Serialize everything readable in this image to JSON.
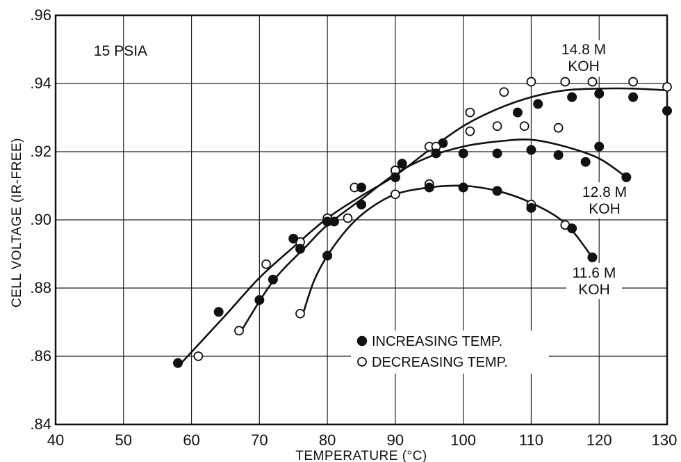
{
  "chart_data": {
    "type": "scatter",
    "xlabel": "TEMPERATURE (°C)",
    "ylabel": "CELL VOLTAGE (IR-FREE)",
    "xlim": [
      40,
      130
    ],
    "ylim": [
      0.84,
      0.96
    ],
    "x_ticks": [
      40,
      50,
      60,
      70,
      80,
      90,
      100,
      110,
      120,
      130
    ],
    "x_tick_labels": [
      "40",
      "50",
      "60",
      "70",
      "80",
      "90",
      "100",
      "110",
      "120",
      "130"
    ],
    "y_ticks": [
      0.84,
      0.86,
      0.88,
      0.9,
      0.92,
      0.94,
      0.96
    ],
    "y_tick_labels": [
      ".84",
      ".86",
      ".88",
      ".90",
      ".92",
      ".94",
      ".96"
    ],
    "grid": true,
    "legend_position": "bottom-center",
    "annotations": {
      "pressure": "15 PSIA",
      "curve_148_conc": "14.8 M",
      "curve_148_unit": "KOH",
      "curve_128_conc": "12.8 M",
      "curve_128_unit": "KOH",
      "curve_116_conc": "11.6 M",
      "curve_116_unit": "KOH"
    },
    "legend": [
      {
        "label": "INCREASING TEMP.",
        "marker": "filled-circle"
      },
      {
        "label": "DECREASING TEMP.",
        "marker": "open-circle"
      }
    ],
    "series": [
      {
        "curve": [
          [
            58.5,
            0.858
          ],
          [
            65,
            0.872
          ],
          [
            70,
            0.883
          ],
          [
            75,
            0.892
          ],
          [
            80,
            0.9005
          ],
          [
            85,
            0.907
          ],
          [
            90,
            0.913
          ],
          [
            95,
            0.9205
          ],
          [
            100,
            0.9275
          ],
          [
            105,
            0.9325
          ],
          [
            110,
            0.936
          ],
          [
            115,
            0.938
          ],
          [
            120,
            0.9385
          ],
          [
            125,
            0.9385
          ],
          [
            130,
            0.938
          ]
        ],
        "increasing": [
          [
            58,
            0.858
          ],
          [
            64,
            0.873
          ],
          [
            70,
            0.8765
          ],
          [
            72,
            0.8825
          ],
          [
            75,
            0.8945
          ],
          [
            76,
            0.8915
          ],
          [
            80,
            0.8995
          ],
          [
            85,
            0.9095
          ],
          [
            90,
            0.9145
          ],
          [
            97,
            0.9225
          ],
          [
            108,
            0.9315
          ],
          [
            111,
            0.934
          ],
          [
            116,
            0.936
          ],
          [
            120,
            0.937
          ],
          [
            125,
            0.936
          ],
          [
            130,
            0.932
          ]
        ],
        "decreasing": [
          [
            61,
            0.86
          ],
          [
            71,
            0.887
          ],
          [
            76,
            0.8935
          ],
          [
            84,
            0.9095
          ],
          [
            95,
            0.9215
          ],
          [
            101,
            0.9315
          ],
          [
            101,
            0.926
          ],
          [
            105,
            0.9275
          ],
          [
            106,
            0.9375
          ],
          [
            109,
            0.9275
          ],
          [
            110,
            0.9405
          ],
          [
            114,
            0.927
          ],
          [
            115,
            0.9405
          ],
          [
            119,
            0.9405
          ],
          [
            125,
            0.9405
          ],
          [
            130,
            0.939
          ]
        ]
      },
      {
        "curve": [
          [
            67.5,
            0.868
          ],
          [
            72,
            0.882
          ],
          [
            77,
            0.8925
          ],
          [
            80,
            0.8985
          ],
          [
            85,
            0.906
          ],
          [
            90,
            0.9135
          ],
          [
            95,
            0.9185
          ],
          [
            100,
            0.9215
          ],
          [
            105,
            0.923
          ],
          [
            110,
            0.9235
          ],
          [
            115,
            0.9215
          ],
          [
            120,
            0.918
          ],
          [
            124,
            0.9125
          ]
        ],
        "increasing": [
          [
            80,
            0.8995
          ],
          [
            81,
            0.8995
          ],
          [
            90,
            0.9125
          ],
          [
            91,
            0.9165
          ],
          [
            96,
            0.9195
          ],
          [
            100,
            0.9195
          ],
          [
            105,
            0.9195
          ],
          [
            110,
            0.9205
          ],
          [
            114,
            0.919
          ],
          [
            118,
            0.917
          ],
          [
            120,
            0.9215
          ],
          [
            124,
            0.9125
          ]
        ],
        "decreasing": [
          [
            67,
            0.8675
          ],
          [
            80,
            0.9005
          ],
          [
            90,
            0.9145
          ],
          [
            96,
            0.9215
          ]
        ]
      },
      {
        "curve": [
          [
            76.5,
            0.873
          ],
          [
            78,
            0.882
          ],
          [
            80,
            0.8895
          ],
          [
            83,
            0.8975
          ],
          [
            86,
            0.903
          ],
          [
            90,
            0.9075
          ],
          [
            95,
            0.9095
          ],
          [
            100,
            0.91
          ],
          [
            105,
            0.9085
          ],
          [
            110,
            0.905
          ],
          [
            115,
            0.899
          ],
          [
            119,
            0.889
          ]
        ],
        "increasing": [
          [
            80,
            0.8895
          ],
          [
            85,
            0.9045
          ],
          [
            90,
            0.9125
          ],
          [
            95,
            0.9095
          ],
          [
            100,
            0.9095
          ],
          [
            105,
            0.9085
          ],
          [
            110,
            0.9035
          ],
          [
            116,
            0.8975
          ],
          [
            119,
            0.889
          ]
        ],
        "decreasing": [
          [
            76,
            0.8725
          ],
          [
            83,
            0.9005
          ],
          [
            85,
            0.9045
          ],
          [
            90,
            0.9075
          ],
          [
            95,
            0.9105
          ],
          [
            100,
            0.9095
          ],
          [
            105,
            0.9085
          ],
          [
            110,
            0.9045
          ],
          [
            115,
            0.8985
          ]
        ]
      }
    ]
  }
}
